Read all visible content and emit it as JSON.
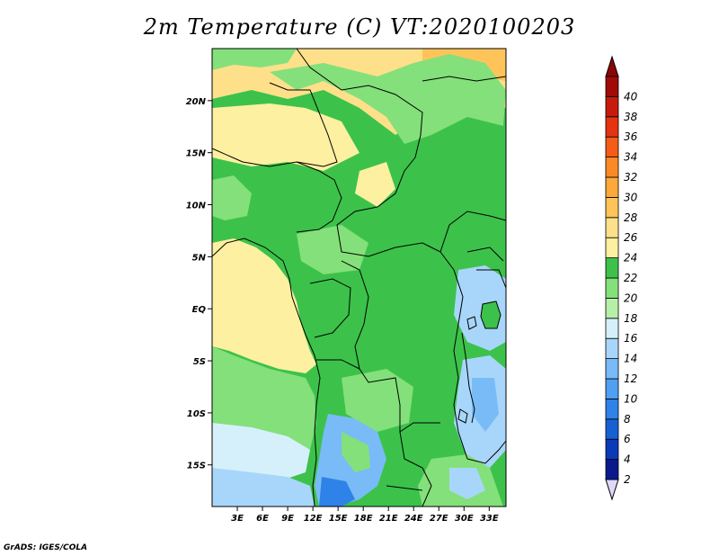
{
  "title": "2m Temperature (C) VT:2020100203",
  "credit": "GrADS: IGES/COLA",
  "map": {
    "lon_range": [
      0,
      35
    ],
    "lat_range": [
      -19,
      25
    ],
    "lon_ticks": [
      {
        "value": 3,
        "label": "3E"
      },
      {
        "value": 6,
        "label": "6E"
      },
      {
        "value": 9,
        "label": "9E"
      },
      {
        "value": 12,
        "label": "12E"
      },
      {
        "value": 15,
        "label": "15E"
      },
      {
        "value": 18,
        "label": "18E"
      },
      {
        "value": 21,
        "label": "21E"
      },
      {
        "value": 24,
        "label": "24E"
      },
      {
        "value": 27,
        "label": "27E"
      },
      {
        "value": 30,
        "label": "30E"
      },
      {
        "value": 33,
        "label": "33E"
      }
    ],
    "lat_ticks": [
      {
        "value": 20,
        "label": "20N"
      },
      {
        "value": 15,
        "label": "15N"
      },
      {
        "value": 10,
        "label": "10N"
      },
      {
        "value": 5,
        "label": "5N"
      },
      {
        "value": 0,
        "label": "EQ"
      },
      {
        "value": -5,
        "label": "5S"
      },
      {
        "value": -10,
        "label": "10S"
      },
      {
        "value": -15,
        "label": "15S"
      }
    ]
  },
  "colorbar": {
    "levels": [
      "2",
      "4",
      "6",
      "8",
      "10",
      "12",
      "14",
      "16",
      "18",
      "20",
      "22",
      "24",
      "26",
      "28",
      "30",
      "32",
      "34",
      "36",
      "38",
      "40"
    ],
    "colors": [
      "#0a1a8c",
      "#0b3ab8",
      "#1760d4",
      "#2e82e8",
      "#4f9ff2",
      "#78bbf7",
      "#a8d6fa",
      "#d6f0fb",
      "#b6f0a8",
      "#84e07a",
      "#3cc24a",
      "#fdf0a0",
      "#fee08a",
      "#fec45a",
      "#fca83a",
      "#fb8a26",
      "#f45c18",
      "#e43410",
      "#c81a0c",
      "#a00a08"
    ],
    "under_color": "#e0d8f8",
    "over_color": "#8a0606"
  }
}
